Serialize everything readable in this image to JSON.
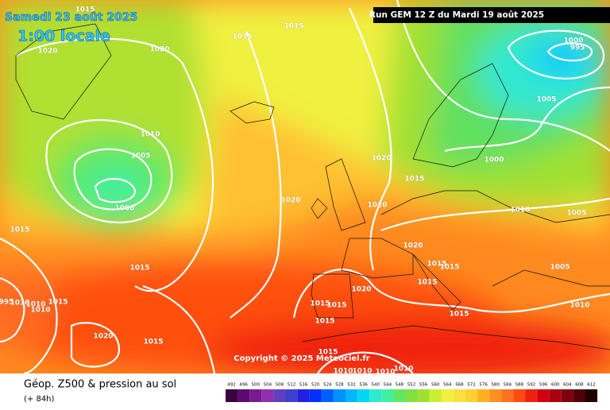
{
  "header": {
    "date": "Samedi 23 août 2025",
    "time": "1:00 locale",
    "run": "Run GEM 12 Z du Mardi 19 août 2025",
    "copyright": "Copyright © 2025 Meteociel.fr"
  },
  "footer": {
    "title": "Géop. Z500 & pression au sol",
    "lead": "(+ 84h)"
  },
  "isobar_labels": [
    "1015",
    "1015",
    "1015",
    "1020",
    "1020",
    "1000",
    "995",
    "1005",
    "1010",
    "1005",
    "1000",
    "1020",
    "1015",
    "1000",
    "1020",
    "1020",
    "1010",
    "1005",
    "1015",
    "1015",
    "1020",
    "1015",
    "1015",
    "1015",
    "1005",
    "1020",
    "995",
    "1010",
    "1010",
    "1015",
    "1010",
    "1010",
    "1015",
    "1015",
    "1015",
    "1015",
    "1020",
    "1015",
    "1015",
    "1010",
    "1010",
    "1010",
    "1010"
  ],
  "scale": {
    "values": [
      492,
      496,
      500,
      504,
      508,
      512,
      516,
      520,
      524,
      528,
      532,
      536,
      540,
      544,
      548,
      552,
      556,
      560,
      564,
      568,
      572,
      576,
      580,
      584,
      588,
      592,
      596,
      600,
      604,
      608,
      612
    ],
    "colors": [
      "#3a0040",
      "#5a0a6e",
      "#7a1a8e",
      "#8f2fb0",
      "#6040c0",
      "#4040d0",
      "#2020e0",
      "#0030ff",
      "#0060ff",
      "#0090ff",
      "#00b8ff",
      "#00d8f0",
      "#30e8d0",
      "#40f0a0",
      "#60e860",
      "#80e040",
      "#a0e030",
      "#c8f030",
      "#f0f040",
      "#f8e040",
      "#ffd030",
      "#ffb020",
      "#ff9020",
      "#ff7020",
      "#ff4a10",
      "#f02010",
      "#d00010",
      "#a80010",
      "#800010",
      "#500008",
      "#200000"
    ]
  }
}
